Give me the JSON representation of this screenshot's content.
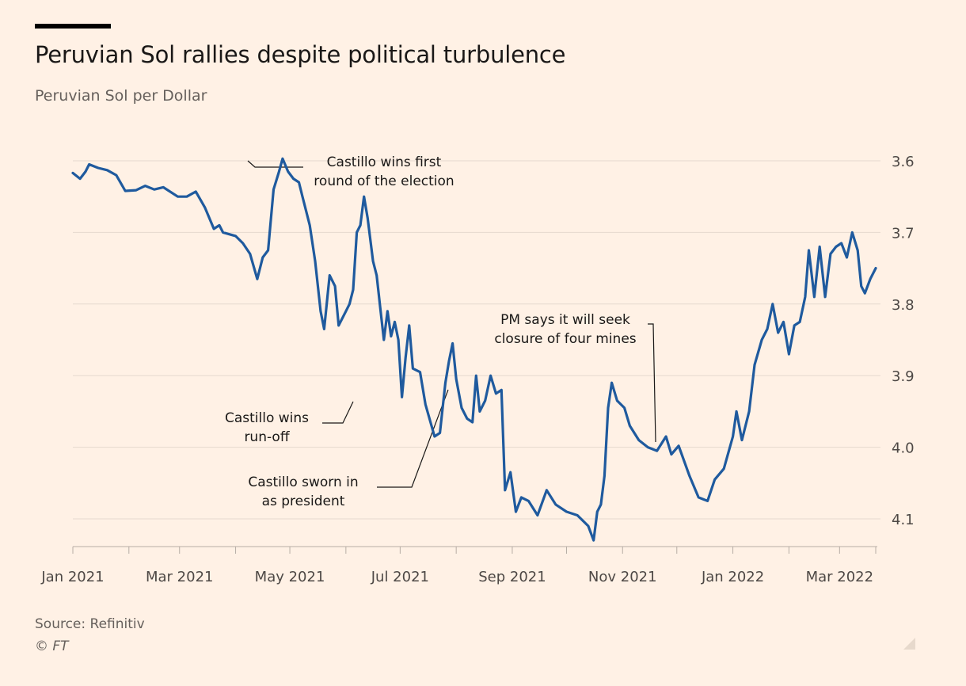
{
  "header": {
    "title": "Peruvian Sol rallies despite political turbulence",
    "subtitle": "Peruvian Sol per Dollar"
  },
  "footer": {
    "source": "Source: Refinitiv",
    "copyright": "© FT"
  },
  "icons": {
    "resize": "resize-corner-icon"
  },
  "colors": {
    "background": "#FFF1E5",
    "line": "#1F5A9E",
    "grid": "#E6D9CE",
    "text": "#33302E",
    "muted": "#66605C"
  },
  "chart_data": {
    "type": "line",
    "title": "Peruvian Sol rallies despite political turbulence",
    "subtitle": "Peruvian Sol per Dollar",
    "xlabel": "",
    "ylabel": "",
    "y_inverted": true,
    "y_axis_side": "right",
    "ylim": [
      4.136,
      3.59
    ],
    "yticks": [
      3.6,
      3.7,
      3.8,
      3.9,
      4.0,
      4.1
    ],
    "ytick_labels": [
      "3.6",
      "3.7",
      "3.8",
      "3.9",
      "4.0",
      "4.1"
    ],
    "xlim": [
      "2021-01-01",
      "2022-03-21"
    ],
    "xtick_labels": [
      "Jan 2021",
      "Mar 2021",
      "May 2021",
      "Jul 2021",
      "Sep 2021",
      "Nov 2021",
      "Jan 2022",
      "Mar 2022"
    ],
    "xtick_dates": [
      "2021-01-01",
      "2021-03-01",
      "2021-05-01",
      "2021-07-01",
      "2021-09-01",
      "2021-11-01",
      "2022-01-01",
      "2022-03-01"
    ],
    "grid": true,
    "series": [
      {
        "name": "",
        "points": [
          [
            "2021-01-01",
            3.617
          ],
          [
            "2021-01-05",
            3.625
          ],
          [
            "2021-01-08",
            3.615
          ],
          [
            "2021-01-10",
            3.605
          ],
          [
            "2021-01-15",
            3.61
          ],
          [
            "2021-01-20",
            3.613
          ],
          [
            "2021-01-25",
            3.62
          ],
          [
            "2021-01-30",
            3.642
          ],
          [
            "2021-02-05",
            3.641
          ],
          [
            "2021-02-10",
            3.635
          ],
          [
            "2021-02-15",
            3.64
          ],
          [
            "2021-02-20",
            3.637
          ],
          [
            "2021-02-28",
            3.65
          ],
          [
            "2021-03-05",
            3.65
          ],
          [
            "2021-03-10",
            3.643
          ],
          [
            "2021-03-15",
            3.665
          ],
          [
            "2021-03-20",
            3.695
          ],
          [
            "2021-03-23",
            3.69
          ],
          [
            "2021-03-25",
            3.7
          ],
          [
            "2021-04-01",
            3.705
          ],
          [
            "2021-04-05",
            3.715
          ],
          [
            "2021-04-09",
            3.73
          ],
          [
            "2021-04-13",
            3.765
          ],
          [
            "2021-04-16",
            3.735
          ],
          [
            "2021-04-19",
            3.725
          ],
          [
            "2021-04-22",
            3.64
          ],
          [
            "2021-04-25",
            3.615
          ],
          [
            "2021-04-27",
            3.597
          ],
          [
            "2021-04-30",
            3.615
          ],
          [
            "2021-05-03",
            3.625
          ],
          [
            "2021-05-06",
            3.63
          ],
          [
            "2021-05-08",
            3.65
          ],
          [
            "2021-05-12",
            3.69
          ],
          [
            "2021-05-15",
            3.74
          ],
          [
            "2021-05-18",
            3.81
          ],
          [
            "2021-05-20",
            3.835
          ],
          [
            "2021-05-23",
            3.76
          ],
          [
            "2021-05-26",
            3.775
          ],
          [
            "2021-05-28",
            3.83
          ],
          [
            "2021-06-01",
            3.81
          ],
          [
            "2021-06-03",
            3.8
          ],
          [
            "2021-06-05",
            3.78
          ],
          [
            "2021-06-07",
            3.7
          ],
          [
            "2021-06-09",
            3.69
          ],
          [
            "2021-06-11",
            3.65
          ],
          [
            "2021-06-13",
            3.68
          ],
          [
            "2021-06-16",
            3.74
          ],
          [
            "2021-06-18",
            3.76
          ],
          [
            "2021-06-20",
            3.805
          ],
          [
            "2021-06-22",
            3.85
          ],
          [
            "2021-06-24",
            3.81
          ],
          [
            "2021-06-26",
            3.845
          ],
          [
            "2021-06-28",
            3.825
          ],
          [
            "2021-06-30",
            3.85
          ],
          [
            "2021-07-02",
            3.93
          ],
          [
            "2021-07-04",
            3.875
          ],
          [
            "2021-07-06",
            3.83
          ],
          [
            "2021-07-08",
            3.89
          ],
          [
            "2021-07-12",
            3.895
          ],
          [
            "2021-07-15",
            3.94
          ],
          [
            "2021-07-20",
            3.985
          ],
          [
            "2021-07-23",
            3.98
          ],
          [
            "2021-07-26",
            3.91
          ],
          [
            "2021-07-28",
            3.88
          ],
          [
            "2021-07-30",
            3.855
          ],
          [
            "2021-08-01",
            3.905
          ],
          [
            "2021-08-04",
            3.945
          ],
          [
            "2021-08-07",
            3.96
          ],
          [
            "2021-08-10",
            3.965
          ],
          [
            "2021-08-12",
            3.9
          ],
          [
            "2021-08-14",
            3.95
          ],
          [
            "2021-08-17",
            3.935
          ],
          [
            "2021-08-20",
            3.9
          ],
          [
            "2021-08-23",
            3.925
          ],
          [
            "2021-08-26",
            3.92
          ],
          [
            "2021-08-28",
            4.06
          ],
          [
            "2021-08-31",
            4.035
          ],
          [
            "2021-09-03",
            4.09
          ],
          [
            "2021-09-06",
            4.07
          ],
          [
            "2021-09-10",
            4.075
          ],
          [
            "2021-09-15",
            4.095
          ],
          [
            "2021-09-20",
            4.06
          ],
          [
            "2021-09-25",
            4.08
          ],
          [
            "2021-10-01",
            4.09
          ],
          [
            "2021-10-07",
            4.095
          ],
          [
            "2021-10-13",
            4.11
          ],
          [
            "2021-10-16",
            4.13
          ],
          [
            "2021-10-18",
            4.09
          ],
          [
            "2021-10-20",
            4.08
          ],
          [
            "2021-10-22",
            4.04
          ],
          [
            "2021-10-24",
            3.945
          ],
          [
            "2021-10-26",
            3.91
          ],
          [
            "2021-10-29",
            3.935
          ],
          [
            "2021-11-02",
            3.945
          ],
          [
            "2021-11-05",
            3.97
          ],
          [
            "2021-11-10",
            3.99
          ],
          [
            "2021-11-15",
            4.0
          ],
          [
            "2021-11-20",
            4.005
          ],
          [
            "2021-11-25",
            3.985
          ],
          [
            "2021-11-28",
            4.01
          ],
          [
            "2021-12-02",
            3.998
          ],
          [
            "2021-12-08",
            4.04
          ],
          [
            "2021-12-13",
            4.07
          ],
          [
            "2021-12-18",
            4.075
          ],
          [
            "2021-12-22",
            4.045
          ],
          [
            "2021-12-27",
            4.03
          ],
          [
            "2022-01-01",
            3.985
          ],
          [
            "2022-01-03",
            3.95
          ],
          [
            "2022-01-06",
            3.99
          ],
          [
            "2022-01-10",
            3.95
          ],
          [
            "2022-01-13",
            3.885
          ],
          [
            "2022-01-17",
            3.85
          ],
          [
            "2022-01-20",
            3.835
          ],
          [
            "2022-01-23",
            3.8
          ],
          [
            "2022-01-26",
            3.84
          ],
          [
            "2022-01-29",
            3.825
          ],
          [
            "2022-02-01",
            3.87
          ],
          [
            "2022-02-04",
            3.83
          ],
          [
            "2022-02-07",
            3.825
          ],
          [
            "2022-02-10",
            3.79
          ],
          [
            "2022-02-12",
            3.725
          ],
          [
            "2022-02-15",
            3.79
          ],
          [
            "2022-02-18",
            3.72
          ],
          [
            "2022-02-21",
            3.79
          ],
          [
            "2022-02-24",
            3.73
          ],
          [
            "2022-02-27",
            3.72
          ],
          [
            "2022-03-02",
            3.715
          ],
          [
            "2022-03-05",
            3.735
          ],
          [
            "2022-03-08",
            3.7
          ],
          [
            "2022-03-11",
            3.725
          ],
          [
            "2022-03-13",
            3.775
          ],
          [
            "2022-03-15",
            3.785
          ],
          [
            "2022-03-18",
            3.765
          ],
          [
            "2022-03-21",
            3.75
          ]
        ]
      }
    ],
    "annotations": [
      {
        "lines": [
          "Castillo wins first",
          "round of the election"
        ]
      },
      {
        "lines": [
          "Castillo wins",
          "run-off"
        ]
      },
      {
        "lines": [
          "Castillo sworn in",
          "as president"
        ]
      },
      {
        "lines": [
          "PM says it will seek",
          "closure of four mines"
        ]
      }
    ]
  }
}
